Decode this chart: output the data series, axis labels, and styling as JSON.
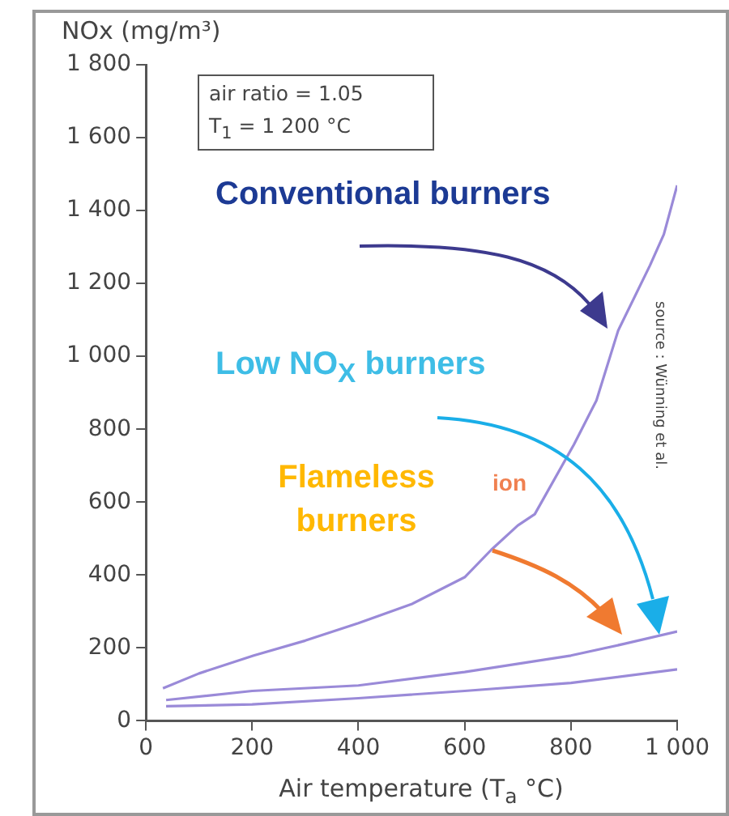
{
  "chart_data": {
    "type": "line",
    "xlabel": "Air temperature (T$_{a}$ °C)",
    "ylabel": "NOx (mg/m³)",
    "xlim": [
      0,
      1000
    ],
    "xticks": [
      0,
      200,
      400,
      600,
      800,
      {
        "value": 1000,
        "label": "1 000"
      }
    ],
    "ylim": [
      0,
      1800
    ],
    "yticks": [
      0,
      200,
      400,
      600,
      800,
      {
        "value": 1000,
        "label": "1 000"
      },
      {
        "value": 1200,
        "label": "1 200"
      },
      {
        "value": 1400,
        "label": "1 400"
      },
      {
        "value": 1600,
        "label": "1 600"
      },
      {
        "value": 1800,
        "label": "1 800"
      }
    ],
    "grid": false,
    "legend": false,
    "series": [
      {
        "color": "#9a8ad8",
        "x": [
          32,
          100,
          203,
          300,
          400,
          500,
          600,
          650,
          700,
          732,
          806,
          848,
          889,
          949,
          975,
          1000
        ],
        "values": [
          89,
          130,
          179,
          220,
          268,
          320,
          394,
          469,
          536,
          567,
          759,
          879,
          1071,
          1250,
          1335,
          1469
        ]
      },
      {
        "color": "#9a8ad8",
        "x": [
          38,
          200,
          400,
          600,
          800,
          900,
          1000
        ],
        "values": [
          57,
          82,
          97,
          134,
          179,
          211,
          245
        ]
      },
      {
        "color": "#9a8ad8",
        "x": [
          38,
          200,
          400,
          600,
          800,
          1000
        ],
        "values": [
          40,
          45,
          62,
          82,
          104,
          141
        ]
      }
    ],
    "annotations": [
      "air ratio = 1.05",
      "T$_{1}$ = 1 200 °C",
      "Conventional burners",
      "Low NO$_{X}$ burners",
      "Flameless burners",
      "ion",
      "source : Wünning et al."
    ]
  }
}
